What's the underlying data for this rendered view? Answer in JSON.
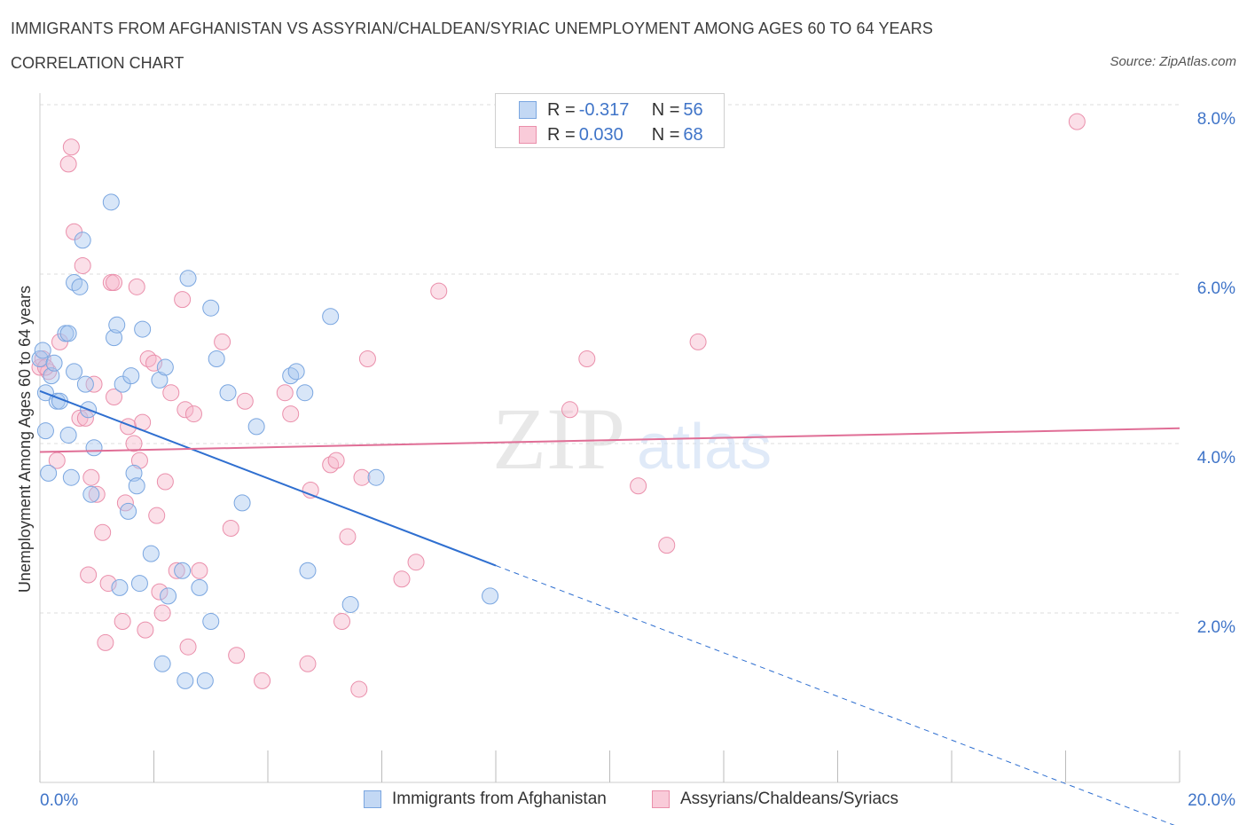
{
  "header": {
    "title": "IMMIGRANTS FROM AFGHANISTAN VS ASSYRIAN/CHALDEAN/SYRIAC UNEMPLOYMENT AMONG AGES 60 TO 64 YEARS",
    "subtitle": "CORRELATION CHART",
    "source": "Source: ZipAtlas.com"
  },
  "watermark": {
    "zip": "ZIP",
    "atlas": "atlas"
  },
  "legend": {
    "rows": [
      {
        "r_label": "R = ",
        "r_value": "-0.317",
        "n_label": "N = ",
        "n_value": "56"
      },
      {
        "r_label": "R = ",
        "r_value": "0.030",
        "n_label": "N = ",
        "n_value": "68"
      }
    ]
  },
  "colors": {
    "blue_fill": "#a9c8f0",
    "blue_stroke": "#7aa6e0",
    "blue_line": "#2f6fd0",
    "pink_fill": "#f6b9cc",
    "pink_stroke": "#ea8fab",
    "pink_line": "#e06e96",
    "axis_label": "#3f74c8",
    "grid": "#dddddd"
  },
  "chart_data": {
    "type": "scatter",
    "title": "IMMIGRANTS FROM AFGHANISTAN VS ASSYRIAN/CHALDEAN/SYRIAC UNEMPLOYMENT AMONG AGES 60 TO 64 YEARS",
    "xlabel": "",
    "ylabel": "Unemployment Among Ages 60 to 64 years",
    "xlim": [
      0,
      20
    ],
    "ylim": [
      0,
      8
    ],
    "x_tick_labels": [
      "0.0%",
      "20.0%"
    ],
    "y_ticks": [
      2,
      4,
      6,
      8
    ],
    "y_tick_labels": [
      "2.0%",
      "4.0%",
      "6.0%",
      "8.0%"
    ],
    "legend_position": "top-center",
    "series": [
      {
        "name": "Immigrants from Afghanistan",
        "color": "#a9c8f0",
        "trend": {
          "x0": 0,
          "y0": 4.62,
          "x1": 8.0,
          "y1": 2.56,
          "dashed_to_x": 20
        },
        "points": [
          [
            0.0,
            5.0
          ],
          [
            0.1,
            4.6
          ],
          [
            0.1,
            4.15
          ],
          [
            0.15,
            3.65
          ],
          [
            0.2,
            4.8
          ],
          [
            0.25,
            4.95
          ],
          [
            0.3,
            4.5
          ],
          [
            0.45,
            5.3
          ],
          [
            0.5,
            4.1
          ],
          [
            0.55,
            3.6
          ],
          [
            0.6,
            4.85
          ],
          [
            0.6,
            5.9
          ],
          [
            0.7,
            5.85
          ],
          [
            0.75,
            6.4
          ],
          [
            0.8,
            4.7
          ],
          [
            0.85,
            4.4
          ],
          [
            0.9,
            3.4
          ],
          [
            0.95,
            3.95
          ],
          [
            1.25,
            6.85
          ],
          [
            1.3,
            5.25
          ],
          [
            1.35,
            5.4
          ],
          [
            1.4,
            2.3
          ],
          [
            1.45,
            4.7
          ],
          [
            1.55,
            3.2
          ],
          [
            1.6,
            4.8
          ],
          [
            1.65,
            3.65
          ],
          [
            1.7,
            3.5
          ],
          [
            1.75,
            2.35
          ],
          [
            1.8,
            5.35
          ],
          [
            1.95,
            2.7
          ],
          [
            2.1,
            4.75
          ],
          [
            2.15,
            1.4
          ],
          [
            2.2,
            4.9
          ],
          [
            2.25,
            2.2
          ],
          [
            2.5,
            2.5
          ],
          [
            2.55,
            1.2
          ],
          [
            2.6,
            5.95
          ],
          [
            2.8,
            2.3
          ],
          [
            2.9,
            1.2
          ],
          [
            3.0,
            1.9
          ],
          [
            3.0,
            5.6
          ],
          [
            3.1,
            5.0
          ],
          [
            3.3,
            4.6
          ],
          [
            3.55,
            3.3
          ],
          [
            3.8,
            4.2
          ],
          [
            4.4,
            4.8
          ],
          [
            4.5,
            4.85
          ],
          [
            4.65,
            4.6
          ],
          [
            4.7,
            2.5
          ],
          [
            5.1,
            5.5
          ],
          [
            5.45,
            2.1
          ],
          [
            5.9,
            3.6
          ],
          [
            7.9,
            2.2
          ],
          [
            0.05,
            5.1
          ],
          [
            0.35,
            4.5
          ],
          [
            0.5,
            5.3
          ]
        ]
      },
      {
        "name": "Assyrians/Chaldeans/Syriacs",
        "color": "#f6b9cc",
        "trend": {
          "x0": 0,
          "y0": 3.9,
          "x1": 20,
          "y1": 4.18
        },
        "points": [
          [
            0.0,
            4.9
          ],
          [
            0.05,
            5.0
          ],
          [
            0.15,
            4.85
          ],
          [
            0.3,
            3.8
          ],
          [
            0.35,
            5.2
          ],
          [
            0.5,
            7.3
          ],
          [
            0.55,
            7.5
          ],
          [
            0.6,
            6.5
          ],
          [
            0.7,
            4.3
          ],
          [
            0.75,
            6.1
          ],
          [
            0.8,
            4.3
          ],
          [
            0.85,
            2.45
          ],
          [
            0.9,
            3.6
          ],
          [
            0.95,
            4.7
          ],
          [
            1.0,
            3.4
          ],
          [
            1.1,
            2.95
          ],
          [
            1.15,
            1.65
          ],
          [
            1.2,
            2.35
          ],
          [
            1.25,
            5.9
          ],
          [
            1.3,
            4.55
          ],
          [
            1.45,
            1.9
          ],
          [
            1.5,
            3.3
          ],
          [
            1.55,
            4.2
          ],
          [
            1.65,
            4.0
          ],
          [
            1.7,
            5.85
          ],
          [
            1.75,
            3.8
          ],
          [
            1.8,
            4.25
          ],
          [
            1.85,
            1.8
          ],
          [
            1.9,
            5.0
          ],
          [
            2.0,
            4.95
          ],
          [
            2.05,
            3.15
          ],
          [
            2.1,
            2.25
          ],
          [
            2.15,
            2.0
          ],
          [
            2.2,
            3.55
          ],
          [
            2.3,
            4.6
          ],
          [
            2.4,
            2.5
          ],
          [
            2.5,
            5.7
          ],
          [
            2.55,
            4.4
          ],
          [
            2.6,
            1.6
          ],
          [
            2.7,
            4.35
          ],
          [
            2.8,
            2.5
          ],
          [
            3.2,
            5.2
          ],
          [
            3.35,
            3.0
          ],
          [
            3.45,
            1.5
          ],
          [
            3.6,
            4.5
          ],
          [
            3.9,
            1.2
          ],
          [
            4.3,
            4.6
          ],
          [
            4.4,
            4.35
          ],
          [
            4.7,
            1.4
          ],
          [
            4.75,
            3.45
          ],
          [
            5.1,
            3.75
          ],
          [
            5.2,
            3.8
          ],
          [
            5.3,
            1.9
          ],
          [
            5.4,
            2.9
          ],
          [
            5.6,
            1.1
          ],
          [
            5.65,
            3.6
          ],
          [
            5.75,
            5.0
          ],
          [
            6.35,
            2.4
          ],
          [
            6.6,
            2.6
          ],
          [
            7.0,
            5.8
          ],
          [
            9.3,
            4.4
          ],
          [
            9.6,
            5.0
          ],
          [
            10.5,
            3.5
          ],
          [
            11.0,
            2.8
          ],
          [
            11.55,
            5.2
          ],
          [
            18.2,
            7.8
          ],
          [
            0.1,
            4.9
          ],
          [
            1.3,
            5.9
          ]
        ]
      }
    ]
  }
}
